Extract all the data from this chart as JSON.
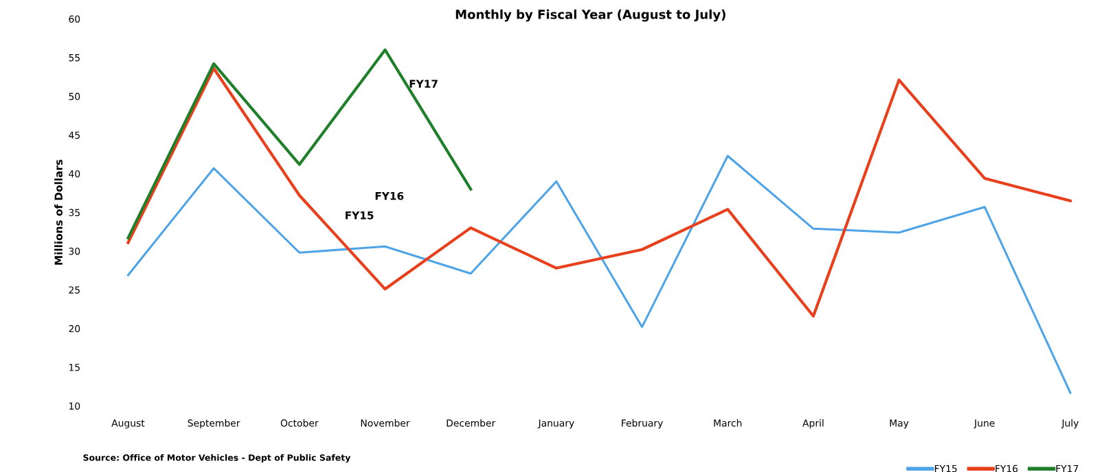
{
  "chart_data": {
    "type": "line",
    "title": "Monthly by Fiscal Year (August to July)",
    "ylabel": "Millions of Dollars",
    "categories": [
      "August",
      "September",
      "October",
      "November",
      "December",
      "January",
      "February",
      "March",
      "April",
      "May",
      "June",
      "July"
    ],
    "series": [
      {
        "name": "FY15",
        "color": "#4da3e8",
        "values": [
          26.9,
          40.7,
          29.8,
          30.6,
          27.1,
          39.0,
          20.2,
          42.3,
          32.9,
          32.4,
          35.7,
          11.7
        ]
      },
      {
        "name": "FY16",
        "color": "#e8401c",
        "values": [
          31.1,
          53.6,
          37.2,
          25.1,
          33.0,
          27.8,
          30.2,
          35.4,
          21.6,
          52.1,
          39.4,
          36.5
        ]
      },
      {
        "name": "FY17",
        "color": "#1f7f2a",
        "values": [
          31.7,
          54.2,
          41.2,
          56.0,
          38.0,
          null,
          null,
          null,
          null,
          null,
          null,
          null
        ]
      }
    ],
    "ylim": [
      10,
      60
    ],
    "yticks": [
      10,
      15,
      20,
      25,
      30,
      35,
      40,
      45,
      50,
      55,
      60
    ],
    "grid": false,
    "legend": "bottom right",
    "marker": "none",
    "line_style": "solid",
    "annotations": [
      "Source: Office of Motor Vehicles - Dept of Public Safety"
    ]
  }
}
